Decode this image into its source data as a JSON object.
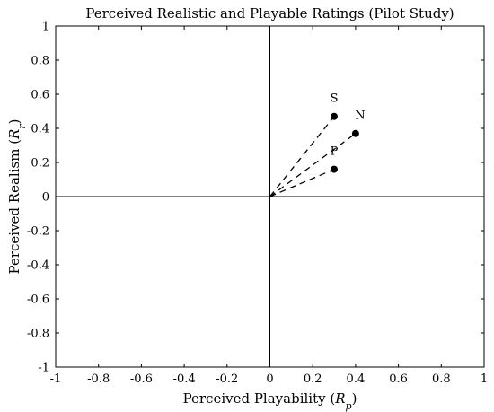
{
  "chart_data": {
    "type": "scatter",
    "title": "Perceived Realistic and Playable Ratings (Pilot Study)",
    "xlabel": {
      "main": "Perceived Playability (",
      "sym": "R",
      "sub": "p",
      "close": ")"
    },
    "ylabel": {
      "main": "Perceived Realism (",
      "sym": "R",
      "sub": "r",
      "close": ")"
    },
    "xlim": [
      -1,
      1
    ],
    "ylim": [
      -1,
      1
    ],
    "x_ticks": [
      "-1",
      "-0.8",
      "-0.6",
      "-0.4",
      "-0.2",
      "0",
      "0.2",
      "0.4",
      "0.6",
      "0.8",
      "1"
    ],
    "y_ticks": [
      "-1",
      "-0.8",
      "-0.6",
      "-0.4",
      "-0.2",
      "0",
      "0.2",
      "0.4",
      "0.6",
      "0.8",
      "1"
    ],
    "grid": false,
    "origin_lines": true,
    "points": [
      {
        "label": "S",
        "x": 0.3,
        "y": 0.47,
        "label_side": "above"
      },
      {
        "label": "N",
        "x": 0.4,
        "y": 0.37,
        "label_side": "above-right"
      },
      {
        "label": "P",
        "x": 0.3,
        "y": 0.16,
        "label_side": "above"
      }
    ],
    "colors": {
      "marker": "#000000",
      "line": "#000000"
    }
  }
}
